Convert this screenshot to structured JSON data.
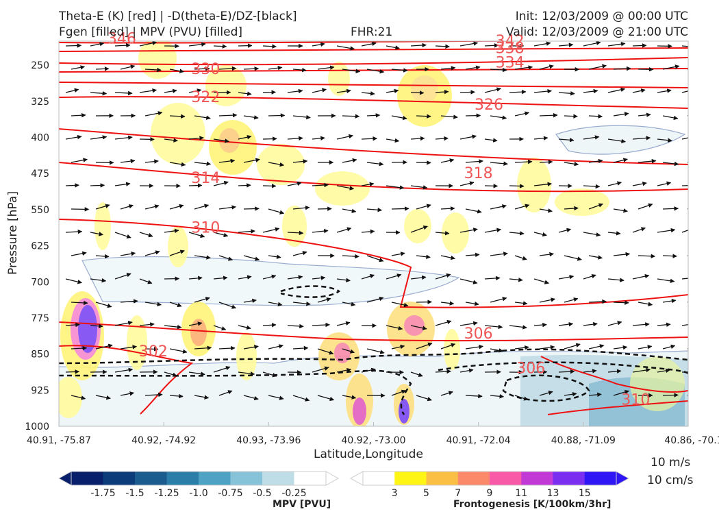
{
  "header": {
    "title_left_1": "Theta-E (K) [red] | -D(theta-E)/DZ-[black]",
    "title_left_2": "Fgen [filled] | MPV (PVU) [filled]",
    "fhr": "FHR:21",
    "init": "Init: 12/03/2009 @ 00:00 UTC",
    "valid": "Valid: 12/03/2009 @ 21:00 UTC"
  },
  "chart_data": {
    "type": "cross-section",
    "xlabel": "Latitude,Longitude",
    "ylabel": "Pressure [hPa]",
    "x_ticks": [
      "40.91, -75.87",
      "40.92, -74.92",
      "40.93, -73.96",
      "40.92, -73.00",
      "40.91, -72.04",
      "40.88, -71.09",
      "40.86, -70.1"
    ],
    "y_ticks": [
      250,
      325,
      400,
      475,
      550,
      625,
      700,
      775,
      850,
      925,
      1000
    ],
    "ylim": [
      1000,
      200
    ],
    "theta_e_contour_labels": [
      {
        "value": "346",
        "x_index": 0.6,
        "p": 205
      },
      {
        "value": "342",
        "x_index": 4.3,
        "p": 210
      },
      {
        "value": "338",
        "x_index": 4.3,
        "p": 225
      },
      {
        "value": "334",
        "x_index": 4.3,
        "p": 255
      },
      {
        "value": "330",
        "x_index": 1.4,
        "p": 268
      },
      {
        "value": "326",
        "x_index": 4.1,
        "p": 342
      },
      {
        "value": "322",
        "x_index": 1.4,
        "p": 327
      },
      {
        "value": "318",
        "x_index": 4.0,
        "p": 485
      },
      {
        "value": "314",
        "x_index": 1.4,
        "p": 495
      },
      {
        "value": "310",
        "x_index": 1.4,
        "p": 598
      },
      {
        "value": "306",
        "x_index": 4.0,
        "p": 818
      },
      {
        "value": "306",
        "x_index": 4.5,
        "p": 890
      },
      {
        "value": "310",
        "x_index": 5.5,
        "p": 955
      },
      {
        "value": "302",
        "x_index": 0.9,
        "p": 855
      }
    ],
    "wind_reference": [
      "10 m/s",
      "10 cm/s"
    ],
    "mpv_colorbar": {
      "label": "MPV [PVU]",
      "ticks": [
        "-1.75",
        "-1.5",
        "-1.25",
        "-1.0",
        "-0.75",
        "-0.5",
        "-0.25"
      ],
      "colors": [
        "#08206b",
        "#0c3d7a",
        "#1b5c8e",
        "#2a7ea8",
        "#4ea3c4",
        "#86c2d8",
        "#bfdde6",
        "#ffffff"
      ]
    },
    "fgen_colorbar": {
      "label": "Frontogenesis [K/100km/3hr]",
      "ticks": [
        "3",
        "5",
        "7",
        "9",
        "11",
        "13",
        "15"
      ],
      "colors": [
        "#ffffff",
        "#fff514",
        "#fbbf45",
        "#fb8a6a",
        "#f85aa8",
        "#c13ad6",
        "#7a2ff0",
        "#2f16f5"
      ]
    }
  }
}
